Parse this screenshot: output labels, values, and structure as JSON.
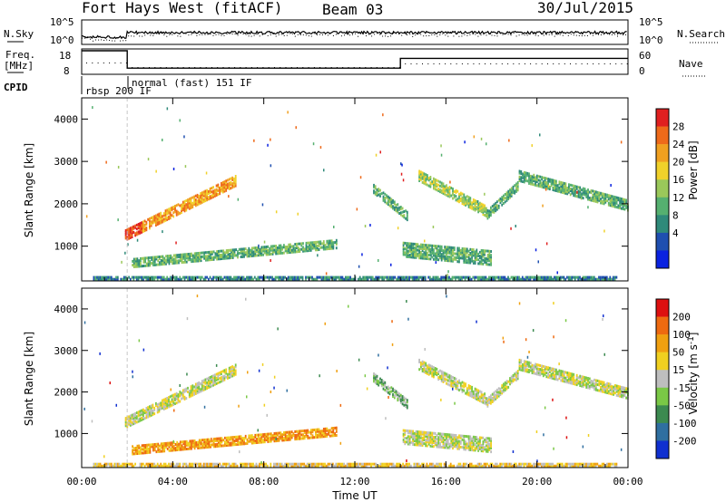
{
  "header": {
    "station": "Fort Hays West (fitACF)",
    "beam": "Beam 03",
    "date": "30/Jul/2015"
  },
  "top_panel": {
    "left_label": "N.Sky",
    "right_label": "N.Search",
    "left_ticks": [
      "10^5",
      "10^0"
    ],
    "right_ticks": [
      "10^5",
      "10^0"
    ]
  },
  "freq_panel": {
    "left_label_line1": "Freq.",
    "left_label_line2": "[MHz]",
    "left_ticks": [
      "18",
      "8"
    ],
    "right_label": "Nave",
    "right_ticks": [
      "60",
      "0"
    ]
  },
  "cpid": {
    "label": "CPID",
    "modes": [
      "rbsp 200 IF",
      "normal (fast) 151 IF"
    ]
  },
  "power_panel": {
    "ylabel": "Slant Range [km]",
    "y_ticks": [
      "4000",
      "3000",
      "2000",
      "1000"
    ],
    "colorbar_label": "Power [dB]",
    "colorbar_ticks": [
      "28",
      "24",
      "20",
      "16",
      "12",
      "8",
      "4"
    ]
  },
  "velocity_panel": {
    "ylabel": "Slant Range [km]",
    "y_ticks": [
      "4000",
      "3000",
      "2000",
      "1000"
    ],
    "colorbar_label": "Velocity [m s",
    "colorbar_label_sup": "-1",
    "colorbar_label_end": "]",
    "colorbar_ticks": [
      "200",
      "100",
      "50",
      "15",
      "-15",
      "-50",
      "-100",
      "-200"
    ]
  },
  "x_axis": {
    "label": "Time UT",
    "ticks": [
      "00:00",
      "04:00",
      "08:00",
      "12:00",
      "16:00",
      "20:00",
      "00:00"
    ]
  },
  "colors": {
    "power_scale": [
      "#0a22e0",
      "#1f4fb0",
      "#2f8a7a",
      "#55b070",
      "#9ac85a",
      "#f0d12a",
      "#f0a020",
      "#ee6a1a",
      "#e02020"
    ],
    "velocity_scale": [
      "#1030d0",
      "#2f6fa0",
      "#3c8a50",
      "#7ac846",
      "#bebebe",
      "#f0d020",
      "#f0a010",
      "#ee6a10",
      "#dd1010"
    ]
  },
  "chart_data": {
    "type": "heatmap",
    "x_range_hours": [
      0,
      24
    ],
    "y_range_km": [
      180,
      4500
    ],
    "power_bands": [
      {
        "t": [
          1.9,
          6.8
        ],
        "r_start": [
          1300,
          2600
        ],
        "width_km": 250,
        "level": 6
      },
      {
        "t": [
          2.2,
          11.2
        ],
        "r_start": [
          650,
          1100
        ],
        "width_km": 220,
        "level": 3
      },
      {
        "t": [
          12.8,
          14.3
        ],
        "r_start": [
          2400,
          1750
        ],
        "width_km": 220,
        "level": 3
      },
      {
        "t": [
          14.1,
          18.0
        ],
        "r_start": [
          950,
          750
        ],
        "width_km": 320,
        "level": 3
      },
      {
        "t": [
          14.8,
          17.8
        ],
        "r_start": [
          2700,
          1850
        ],
        "width_km": 250,
        "level": 4
      },
      {
        "t": [
          17.8,
          19.2
        ],
        "r_start": [
          1800,
          2500
        ],
        "width_km": 220,
        "level": 3
      },
      {
        "t": [
          19.2,
          24.0
        ],
        "r_start": [
          2700,
          2000
        ],
        "width_km": 250,
        "level": 3
      },
      {
        "t": [
          0.5,
          23.5
        ],
        "r_start": [
          250,
          250
        ],
        "width_km": 90,
        "level": 2
      }
    ],
    "velocity_bands": [
      {
        "t": [
          1.9,
          6.8
        ],
        "r_start": [
          1300,
          2600
        ],
        "width_km": 250,
        "level": 4
      },
      {
        "t": [
          2.2,
          11.2
        ],
        "r_start": [
          650,
          1100
        ],
        "width_km": 220,
        "level": 6
      },
      {
        "t": [
          12.8,
          14.3
        ],
        "r_start": [
          2400,
          1750
        ],
        "width_km": 220,
        "level": 3
      },
      {
        "t": [
          14.1,
          18.0
        ],
        "r_start": [
          950,
          750
        ],
        "width_km": 320,
        "level": 4
      },
      {
        "t": [
          14.8,
          17.8
        ],
        "r_start": [
          2700,
          1850
        ],
        "width_km": 250,
        "level": 4
      },
      {
        "t": [
          17.8,
          19.2
        ],
        "r_start": [
          1800,
          2500
        ],
        "width_km": 220,
        "level": 4
      },
      {
        "t": [
          19.2,
          24.0
        ],
        "r_start": [
          2700,
          2000
        ],
        "width_km": 250,
        "level": 4
      },
      {
        "t": [
          0.5,
          23.5
        ],
        "r_start": [
          250,
          250
        ],
        "width_km": 90,
        "level": 5
      }
    ],
    "freq_steps_mhz": [
      {
        "t": [
          0,
          2
        ],
        "v": 18
      },
      {
        "t": [
          2,
          14
        ],
        "v": 10
      },
      {
        "t": [
          14,
          24
        ],
        "v": 14.5
      }
    ]
  }
}
